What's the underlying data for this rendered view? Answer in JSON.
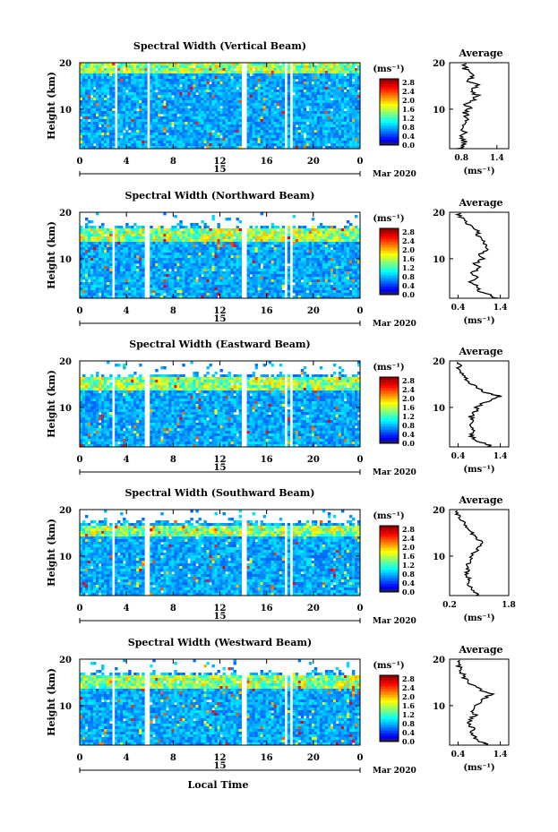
{
  "chart_data": [
    {
      "type": "heatmap",
      "title": "Spectral Width (Vertical Beam)",
      "ylabel": "Height (km)",
      "yticks": [
        "20",
        "10"
      ],
      "xticks": [
        "0",
        "4",
        "8",
        "12",
        "16",
        "20",
        "0"
      ],
      "day_label": "15",
      "month_label": "Mar 2020",
      "xlim": [
        0,
        24
      ],
      "ylim": [
        1.5,
        20
      ],
      "gaps_hours": [
        [
          2.9,
          3.2
        ],
        [
          5.7,
          6.0
        ],
        [
          13.9,
          14.2
        ],
        [
          17.6,
          17.8
        ],
        [
          18.1,
          18.3
        ]
      ],
      "top_fraction": 1.0,
      "colorbar": {
        "unit": "(ms⁻¹)",
        "ticks": [
          "2.8",
          "2.4",
          "2.0",
          "1.6",
          "1.2",
          "0.8",
          "0.4",
          "0.0"
        ],
        "range": [
          0,
          3.0
        ]
      },
      "average": {
        "title": "Average",
        "xlabel": "(ms⁻¹)",
        "xticks": [
          "0.8",
          "1.4"
        ],
        "xlim": [
          0.6,
          1.6
        ],
        "yticks": [
          "20",
          "10"
        ],
        "profile": [
          [
            1.5,
            0.78
          ],
          [
            2,
            0.8
          ],
          [
            3,
            0.85
          ],
          [
            4,
            0.8
          ],
          [
            5,
            0.85
          ],
          [
            6,
            0.8
          ],
          [
            7,
            0.85
          ],
          [
            8,
            0.9
          ],
          [
            9,
            0.85
          ],
          [
            10,
            0.95
          ],
          [
            11,
            0.9
          ],
          [
            12,
            1.0
          ],
          [
            13,
            1.05
          ],
          [
            14,
            0.95
          ],
          [
            15,
            1.1
          ],
          [
            16,
            0.95
          ],
          [
            17,
            1.0
          ],
          [
            18,
            0.9
          ],
          [
            19,
            0.85
          ],
          [
            20,
            0.88
          ]
        ]
      }
    },
    {
      "type": "heatmap",
      "title": "Spectral Width (Northward Beam)",
      "ylabel": "Height (km)",
      "yticks": [
        "20",
        "10"
      ],
      "xticks": [
        "0",
        "4",
        "8",
        "12",
        "16",
        "20",
        "0"
      ],
      "day_label": "15",
      "month_label": "Mar 2020",
      "xlim": [
        0,
        24
      ],
      "ylim": [
        1.5,
        20
      ],
      "gaps_hours": [
        [
          2.7,
          3.0
        ],
        [
          5.6,
          5.9
        ],
        [
          13.9,
          14.2
        ],
        [
          17.6,
          17.8
        ],
        [
          18.1,
          18.3
        ]
      ],
      "top_fraction": 0.8,
      "colorbar": {
        "unit": "(ms⁻¹)",
        "ticks": [
          "2.8",
          "2.4",
          "2.0",
          "1.6",
          "1.2",
          "0.8",
          "0.4",
          "0.0"
        ],
        "range": [
          0,
          3.0
        ]
      },
      "average": {
        "title": "Average",
        "xlabel": "(ms⁻¹)",
        "xticks": [
          "0.4",
          "1.4"
        ],
        "xlim": [
          0.2,
          1.6
        ],
        "yticks": [
          "20",
          "10"
        ],
        "profile": [
          [
            1.5,
            1.3
          ],
          [
            2,
            1.2
          ],
          [
            3,
            0.9
          ],
          [
            4,
            0.85
          ],
          [
            5,
            0.7
          ],
          [
            6,
            0.85
          ],
          [
            7,
            0.75
          ],
          [
            8,
            0.9
          ],
          [
            9,
            0.8
          ],
          [
            10,
            1.0
          ],
          [
            11,
            0.9
          ],
          [
            12,
            1.1
          ],
          [
            13,
            1.05
          ],
          [
            14,
            1.0
          ],
          [
            15,
            0.85
          ],
          [
            16,
            0.9
          ],
          [
            17,
            0.7
          ],
          [
            18,
            0.6
          ],
          [
            19,
            0.45
          ],
          [
            20,
            0.4
          ]
        ]
      }
    },
    {
      "type": "heatmap",
      "title": "Spectral Width (Eastward Beam)",
      "ylabel": "Height (km)",
      "yticks": [
        "20",
        "10"
      ],
      "xticks": [
        "0",
        "4",
        "8",
        "12",
        "16",
        "20",
        "0"
      ],
      "day_label": "15",
      "month_label": "Mar 2020",
      "xlim": [
        0,
        24
      ],
      "ylim": [
        1.5,
        20
      ],
      "gaps_hours": [
        [
          2.7,
          3.0
        ],
        [
          5.6,
          5.9
        ],
        [
          13.9,
          14.2
        ],
        [
          17.6,
          17.8
        ],
        [
          18.1,
          18.3
        ]
      ],
      "top_fraction": 0.8,
      "colorbar": {
        "unit": "(ms⁻¹)",
        "ticks": [
          "2.8",
          "2.4",
          "2.0",
          "1.6",
          "1.2",
          "0.8",
          "0.4",
          "0.0"
        ],
        "range": [
          0,
          3.0
        ]
      },
      "average": {
        "title": "Average",
        "xlabel": "(ms⁻¹)",
        "xticks": [
          "0.4",
          "1.4"
        ],
        "xlim": [
          0.2,
          1.6
        ],
        "yticks": [
          "20",
          "10"
        ],
        "profile": [
          [
            1.5,
            1.2
          ],
          [
            2,
            1.1
          ],
          [
            3,
            0.8
          ],
          [
            4,
            0.7
          ],
          [
            5,
            0.8
          ],
          [
            6,
            0.7
          ],
          [
            7,
            0.75
          ],
          [
            8,
            0.7
          ],
          [
            9,
            0.8
          ],
          [
            10,
            0.85
          ],
          [
            11,
            1.0
          ],
          [
            12,
            1.3
          ],
          [
            12.5,
            1.4
          ],
          [
            13,
            1.1
          ],
          [
            14,
            0.9
          ],
          [
            15,
            0.7
          ],
          [
            16,
            0.6
          ],
          [
            17,
            0.5
          ],
          [
            18,
            0.4
          ],
          [
            19,
            0.45
          ],
          [
            20,
            0.4
          ]
        ]
      }
    },
    {
      "type": "heatmap",
      "title": "Spectral Width (Southward Beam)",
      "ylabel": "Height (km)",
      "yticks": [
        "20",
        "10"
      ],
      "xticks": [
        "0",
        "4",
        "8",
        "12",
        "16",
        "20",
        "0"
      ],
      "day_label": "15",
      "month_label": "Mar 2020",
      "xlim": [
        0,
        24
      ],
      "ylim": [
        1.5,
        20
      ],
      "gaps_hours": [
        [
          2.7,
          3.0
        ],
        [
          5.6,
          5.9
        ],
        [
          13.9,
          14.2
        ],
        [
          17.6,
          17.8
        ],
        [
          18.1,
          18.3
        ]
      ],
      "top_fraction": 0.82,
      "colorbar": {
        "unit": "(ms⁻¹)",
        "ticks": [
          "2.8",
          "2.4",
          "2.0",
          "1.6",
          "1.2",
          "0.8",
          "0.4",
          "0.0"
        ],
        "range": [
          0,
          3.0
        ]
      },
      "average": {
        "title": "Average",
        "xlabel": "(ms⁻¹)",
        "xticks": [
          "0.2",
          "1.8"
        ],
        "xlim": [
          0.2,
          1.8
        ],
        "yticks": [
          "20",
          "10"
        ],
        "profile": [
          [
            1.5,
            1.0
          ],
          [
            2,
            0.9
          ],
          [
            3,
            0.8
          ],
          [
            4,
            0.7
          ],
          [
            5,
            0.75
          ],
          [
            6,
            0.65
          ],
          [
            7,
            0.7
          ],
          [
            8,
            0.65
          ],
          [
            9,
            0.75
          ],
          [
            10,
            0.8
          ],
          [
            11,
            0.9
          ],
          [
            12,
            1.0
          ],
          [
            13,
            1.05
          ],
          [
            14,
            0.9
          ],
          [
            15,
            0.8
          ],
          [
            16,
            0.7
          ],
          [
            17,
            0.6
          ],
          [
            18,
            0.5
          ],
          [
            19,
            0.4
          ],
          [
            20,
            0.35
          ]
        ]
      }
    },
    {
      "type": "heatmap",
      "title": "Spectral Width (Westward Beam)",
      "ylabel": "Height (km)",
      "yticks": [
        "20",
        "10"
      ],
      "xticks": [
        "0",
        "4",
        "8",
        "12",
        "16",
        "20",
        "0"
      ],
      "day_label": "15",
      "month_label": "Mar 2020",
      "xlabel": "Local Time",
      "xlim": [
        0,
        24
      ],
      "ylim": [
        1.5,
        20
      ],
      "gaps_hours": [
        [
          2.7,
          3.0
        ],
        [
          5.6,
          5.9
        ],
        [
          13.9,
          14.2
        ],
        [
          17.6,
          17.8
        ],
        [
          18.1,
          18.3
        ]
      ],
      "top_fraction": 0.8,
      "colorbar": {
        "unit": "(ms⁻¹)",
        "ticks": [
          "2.8",
          "2.4",
          "2.0",
          "1.6",
          "1.2",
          "0.8",
          "0.4",
          "0.0"
        ],
        "range": [
          0,
          3.0
        ]
      },
      "average": {
        "title": "Average",
        "xlabel": "(ms⁻¹)",
        "xticks": [
          "0.4",
          "1.4"
        ],
        "xlim": [
          0.2,
          1.6
        ],
        "yticks": [
          "20",
          "10"
        ],
        "profile": [
          [
            1.5,
            1.1
          ],
          [
            2,
            1.0
          ],
          [
            3,
            0.8
          ],
          [
            4,
            0.7
          ],
          [
            5,
            0.75
          ],
          [
            6,
            0.65
          ],
          [
            7,
            0.7
          ],
          [
            8,
            0.8
          ],
          [
            9,
            0.75
          ],
          [
            10,
            0.85
          ],
          [
            11,
            0.95
          ],
          [
            12,
            1.1
          ],
          [
            12.5,
            1.25
          ],
          [
            13,
            1.0
          ],
          [
            14,
            0.8
          ],
          [
            15,
            0.65
          ],
          [
            16,
            0.55
          ],
          [
            17,
            0.5
          ],
          [
            18,
            0.45
          ],
          [
            19,
            0.4
          ],
          [
            20,
            0.38
          ]
        ]
      }
    }
  ]
}
